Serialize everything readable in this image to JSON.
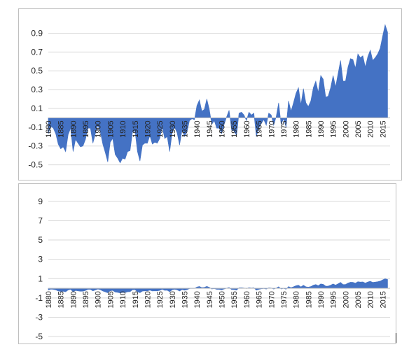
{
  "chart_data": [
    {
      "type": "area",
      "title": "",
      "xlabel": "",
      "ylabel": "",
      "ylim": [
        -0.6,
        1.0
      ],
      "yticks": [
        0.9,
        0.7,
        0.5,
        0.3,
        0.1,
        -0.1,
        -0.3,
        -0.5
      ],
      "xlim": [
        1880,
        2018
      ],
      "xticks": [
        1880,
        1885,
        1890,
        1895,
        1900,
        1905,
        1910,
        1915,
        1920,
        1925,
        1930,
        1935,
        1940,
        1945,
        1950,
        1955,
        1960,
        1965,
        1970,
        1975,
        1980,
        1985,
        1990,
        1995,
        2000,
        2005,
        2010,
        2015
      ],
      "baseline": 0,
      "grid": true,
      "color": "#4472c4",
      "series": [
        {
          "x": [
            1880,
            1881,
            1882,
            1883,
            1884,
            1885,
            1886,
            1887,
            1888,
            1889,
            1890,
            1891,
            1892,
            1893,
            1894,
            1895,
            1896,
            1897,
            1898,
            1899,
            1900,
            1901,
            1902,
            1903,
            1904,
            1905,
            1906,
            1907,
            1908,
            1909,
            1910,
            1911,
            1912,
            1913,
            1914,
            1915,
            1916,
            1917,
            1918,
            1919,
            1920,
            1921,
            1922,
            1923,
            1924,
            1925,
            1926,
            1927,
            1928,
            1929,
            1930,
            1931,
            1932,
            1933,
            1934,
            1935,
            1936,
            1937,
            1938,
            1939,
            1940,
            1941,
            1942,
            1943,
            1944,
            1945,
            1946,
            1947,
            1948,
            1949,
            1950,
            1951,
            1952,
            1953,
            1954,
            1955,
            1956,
            1957,
            1958,
            1959,
            1960,
            1961,
            1962,
            1963,
            1964,
            1965,
            1966,
            1967,
            1968,
            1969,
            1970,
            1971,
            1972,
            1973,
            1974,
            1975,
            1976,
            1977,
            1978,
            1979,
            1980,
            1981,
            1982,
            1983,
            1984,
            1985,
            1986,
            1987,
            1988,
            1989,
            1990,
            1991,
            1992,
            1993,
            1994,
            1995,
            1996,
            1997,
            1998,
            1999,
            2000,
            2001,
            2002,
            2003,
            2004,
            2005,
            2006,
            2007,
            2008,
            2009,
            2010,
            2011,
            2012,
            2013,
            2014,
            2015,
            2016,
            2017
          ],
          "values": [
            -0.17,
            -0.09,
            -0.11,
            -0.17,
            -0.28,
            -0.33,
            -0.31,
            -0.36,
            -0.18,
            -0.11,
            -0.36,
            -0.23,
            -0.27,
            -0.31,
            -0.3,
            -0.23,
            -0.11,
            -0.11,
            -0.27,
            -0.17,
            -0.08,
            -0.15,
            -0.28,
            -0.37,
            -0.47,
            -0.26,
            -0.22,
            -0.39,
            -0.43,
            -0.48,
            -0.43,
            -0.44,
            -0.36,
            -0.35,
            -0.15,
            -0.14,
            -0.36,
            -0.46,
            -0.29,
            -0.27,
            -0.27,
            -0.19,
            -0.28,
            -0.26,
            -0.27,
            -0.22,
            -0.1,
            -0.22,
            -0.2,
            -0.36,
            -0.16,
            -0.1,
            -0.16,
            -0.29,
            -0.13,
            -0.2,
            -0.15,
            -0.03,
            -0.01,
            -0.02,
            0.13,
            0.19,
            0.07,
            0.09,
            0.2,
            0.09,
            -0.07,
            -0.03,
            -0.11,
            -0.11,
            -0.17,
            -0.07,
            0.01,
            0.08,
            -0.13,
            -0.14,
            -0.19,
            0.05,
            0.06,
            0.03,
            -0.03,
            0.06,
            0.03,
            0.05,
            -0.2,
            -0.11,
            -0.06,
            -0.02,
            -0.08,
            0.05,
            0.03,
            -0.08,
            0.01,
            0.16,
            -0.07,
            -0.01,
            -0.1,
            0.18,
            0.07,
            0.16,
            0.26,
            0.32,
            0.14,
            0.31,
            0.16,
            0.12,
            0.18,
            0.32,
            0.39,
            0.27,
            0.45,
            0.41,
            0.22,
            0.23,
            0.32,
            0.45,
            0.33,
            0.47,
            0.61,
            0.39,
            0.39,
            0.54,
            0.63,
            0.62,
            0.53,
            0.68,
            0.64,
            0.66,
            0.54,
            0.65,
            0.72,
            0.61,
            0.64,
            0.68,
            0.74,
            0.87,
            0.99,
            0.91
          ]
        }
      ]
    },
    {
      "type": "area",
      "title": "",
      "xlabel": "",
      "ylabel": "",
      "ylim": [
        -5.5,
        10.0
      ],
      "yticks": [
        9,
        7,
        5,
        3,
        1,
        -1,
        -3,
        -5
      ],
      "xlim": [
        1880,
        2018
      ],
      "xticks": [
        1880,
        1885,
        1890,
        1895,
        1900,
        1905,
        1910,
        1915,
        1920,
        1925,
        1930,
        1935,
        1940,
        1945,
        1950,
        1955,
        1960,
        1965,
        1970,
        1975,
        1980,
        1985,
        1990,
        1995,
        2000,
        2005,
        2010,
        2015
      ],
      "baseline": 0,
      "grid": true,
      "color": "#4472c4",
      "series_ref": "same as first chart"
    }
  ]
}
